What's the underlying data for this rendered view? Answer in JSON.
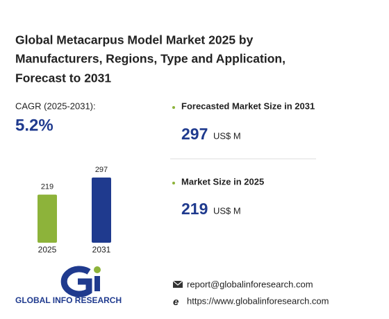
{
  "title_lines": [
    "Global Metacarpus Model Market 2025 by",
    "Manufacturers, Regions, Type and Application,",
    "Forecast to 2031"
  ],
  "cagr": {
    "label": "CAGR (2025-2031):",
    "value": "5.2%"
  },
  "chart_data": {
    "type": "bar",
    "categories": [
      "2025",
      "2031"
    ],
    "values": [
      219,
      297
    ],
    "colors": [
      "#8db33a",
      "#1f3a8e"
    ]
  },
  "stats": [
    {
      "label": "Forecasted Market Size in 2031",
      "unit": "US$ M"
    },
    {
      "label": "Market Size in 2025",
      "unit": "US$ M"
    }
  ],
  "logo": "GLOBAL INFO RESEARCH",
  "contact": {
    "email": "report@globalinforesearch.com",
    "url": "https://www.globalinforesearch.com"
  }
}
